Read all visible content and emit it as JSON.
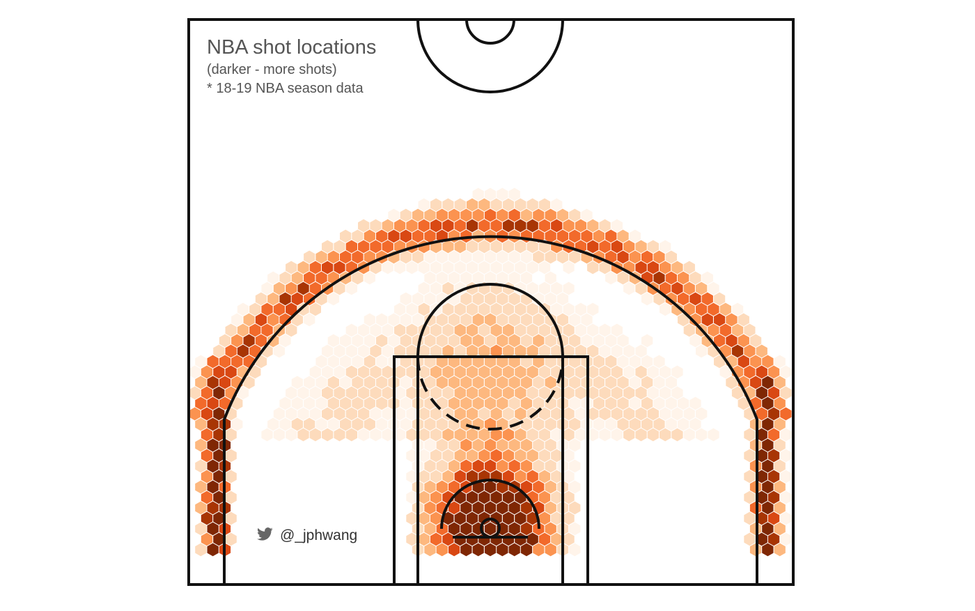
{
  "chart_data": {
    "type": "heatmap",
    "title": "NBA shot locations",
    "subtitle": "(darker - more shots)",
    "note": "* 18-19 NBA season data",
    "credit": "@_jphwang",
    "credit_icon": "twitter-bird-icon",
    "xlabel": "",
    "ylabel": "",
    "grid": false,
    "legend": "none",
    "xlim_ft": [
      -25,
      25
    ],
    "ylim_ft": [
      -4.75,
      42.25
    ],
    "color_scale": {
      "name": "Oranges",
      "stops": [
        "#fff4ea",
        "#fddbbc",
        "#fdb87f",
        "#fb9350",
        "#f26a2b",
        "#d94813",
        "#a83504",
        "#7f2704"
      ]
    },
    "density_zones": [
      {
        "zone": "restricted area",
        "relative_frequency": "highest"
      },
      {
        "zone": "paint below free-throw line",
        "relative_frequency": "high"
      },
      {
        "zone": "corner threes",
        "relative_frequency": "high"
      },
      {
        "zone": "above-the-break threes",
        "relative_frequency": "high"
      },
      {
        "zone": "mid-range",
        "relative_frequency": "low"
      }
    ]
  }
}
